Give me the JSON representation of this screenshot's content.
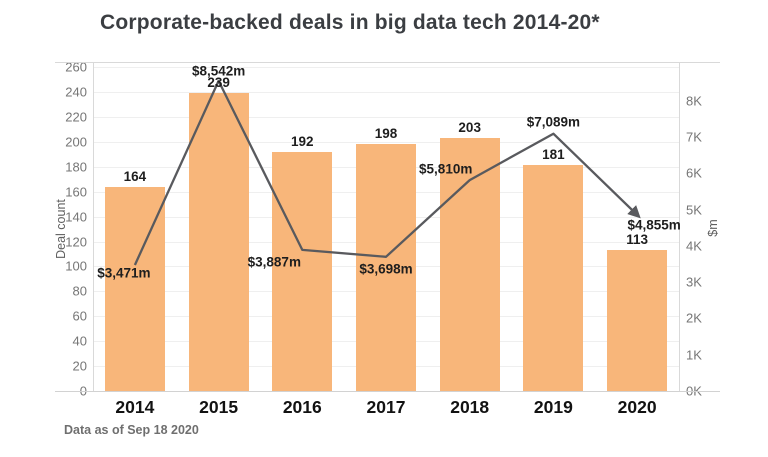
{
  "header": {
    "title": "Corporate-backed deals in big data tech 2014-20*"
  },
  "footer": {
    "note": "Data as of Sep 18 2020"
  },
  "chart_data": {
    "type": "bar",
    "subtype": "bar-and-line-combo",
    "title": "Corporate-backed deals in big data tech 2014-20*",
    "categories": [
      "2014",
      "2015",
      "2016",
      "2017",
      "2018",
      "2019",
      "2020"
    ],
    "grid": true,
    "legend_position": "none",
    "axes": {
      "left": {
        "label": "Deal count",
        "range": [
          0,
          260
        ],
        "tick_step": 20,
        "ticks": [
          "0",
          "20",
          "40",
          "60",
          "80",
          "100",
          "120",
          "140",
          "160",
          "180",
          "200",
          "220",
          "240",
          "260"
        ]
      },
      "right": {
        "label": "$m",
        "range": [
          0,
          8000
        ],
        "tick_step": 1000,
        "ticks": [
          "0K",
          "1K",
          "2K",
          "3K",
          "4K",
          "5K",
          "6K",
          "7K",
          "8K"
        ]
      }
    },
    "series": [
      {
        "name": "Deal count",
        "render": "bar",
        "axis": "left",
        "color": "#F8B67A",
        "values": [
          164,
          239,
          192,
          198,
          203,
          181,
          113
        ],
        "labels": [
          "164",
          "239",
          "192",
          "198",
          "203",
          "181",
          "113"
        ]
      },
      {
        "name": "$m",
        "render": "line",
        "axis": "right",
        "color": "#595A5E",
        "arrow_end": true,
        "values": [
          3471,
          8542,
          3887,
          3698,
          5810,
          7089,
          4855
        ],
        "labels": [
          "$3,471m",
          "$8,542m",
          "$3,887m",
          "$3,698m",
          "$5,810m",
          "$7,089m",
          "$4,855m"
        ],
        "label_offsets": [
          {
            "dx": -11,
            "dy": 8
          },
          {
            "dx": 0,
            "dy": -10
          },
          {
            "dx": -28,
            "dy": 12
          },
          {
            "dx": 0,
            "dy": 12
          },
          {
            "dx": -24,
            "dy": -11
          },
          {
            "dx": 0,
            "dy": -12
          },
          {
            "dx": 17,
            "dy": 10
          }
        ]
      }
    ]
  },
  "colors": {
    "bar": "#F8B67A",
    "line": "#595A5E",
    "grid": "#efefef",
    "frame": "#d9d9d9",
    "title_text": "#3b3e42",
    "tick_text": "#767676",
    "data_label_text": "#1e1e1e"
  }
}
